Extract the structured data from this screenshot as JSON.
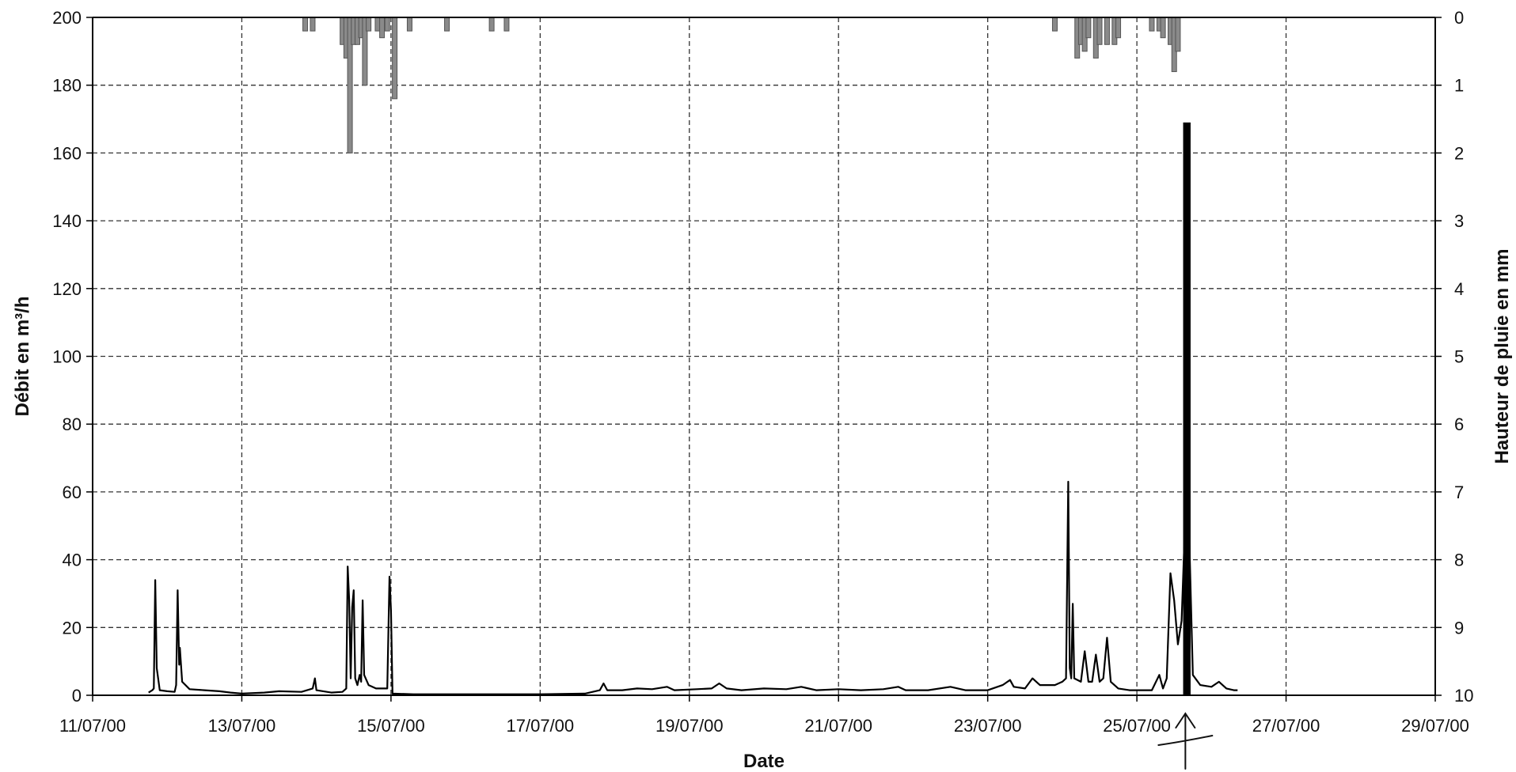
{
  "chart_data": {
    "type": "line",
    "title": "",
    "xlabel": "Date",
    "ylabel_left": "Débit en m³/h",
    "ylabel_right": "Hauteur de pluie en mm",
    "x_tick_labels": [
      "11/07/00",
      "13/07/00",
      "15/07/00",
      "17/07/00",
      "19/07/00",
      "21/07/00",
      "23/07/00",
      "25/07/00",
      "27/07/00",
      "29/07/00"
    ],
    "x_range_days": [
      0,
      18
    ],
    "y_left_ticks": [
      "0",
      "20",
      "40",
      "60",
      "80",
      "100",
      "120",
      "140",
      "160",
      "180",
      "200"
    ],
    "y_left_range": [
      0,
      200
    ],
    "y_right_ticks": [
      "0",
      "1",
      "2",
      "3",
      "4",
      "5",
      "6",
      "7",
      "8",
      "9",
      "10"
    ],
    "y_right_range": [
      0,
      10
    ],
    "y_right_inverted": true,
    "grid": true,
    "series": [
      {
        "kind": "flow",
        "axis": "left",
        "color": "#000000",
        "points": [
          [
            0.75,
            0.8
          ],
          [
            0.8,
            1.5
          ],
          [
            0.82,
            2
          ],
          [
            0.84,
            34
          ],
          [
            0.86,
            8
          ],
          [
            0.9,
            1.5
          ],
          [
            1.0,
            1.2
          ],
          [
            1.1,
            1
          ],
          [
            1.12,
            3
          ],
          [
            1.14,
            31
          ],
          [
            1.16,
            9
          ],
          [
            1.17,
            14
          ],
          [
            1.2,
            4
          ],
          [
            1.3,
            1.8
          ],
          [
            1.5,
            1.5
          ],
          [
            1.7,
            1.2
          ],
          [
            1.85,
            0.8
          ],
          [
            2.0,
            0.5
          ],
          [
            2.3,
            0.8
          ],
          [
            2.5,
            1.2
          ],
          [
            2.8,
            1
          ],
          [
            2.95,
            2
          ],
          [
            2.98,
            5
          ],
          [
            3.0,
            1.5
          ],
          [
            3.2,
            0.8
          ],
          [
            3.35,
            1
          ],
          [
            3.4,
            2
          ],
          [
            3.42,
            38
          ],
          [
            3.44,
            28
          ],
          [
            3.46,
            5
          ],
          [
            3.48,
            26
          ],
          [
            3.5,
            31
          ],
          [
            3.52,
            5
          ],
          [
            3.55,
            3
          ],
          [
            3.58,
            6
          ],
          [
            3.6,
            4
          ],
          [
            3.62,
            28
          ],
          [
            3.64,
            6
          ],
          [
            3.7,
            3
          ],
          [
            3.8,
            2
          ],
          [
            3.95,
            2
          ],
          [
            3.98,
            35
          ],
          [
            4.0,
            25
          ],
          [
            4.02,
            0.5
          ],
          [
            4.3,
            0.3
          ],
          [
            6.0,
            0.3
          ],
          [
            6.6,
            0.5
          ],
          [
            6.8,
            1.5
          ],
          [
            6.85,
            3.5
          ],
          [
            6.9,
            1.5
          ],
          [
            7.1,
            1.5
          ],
          [
            7.3,
            2
          ],
          [
            7.5,
            1.8
          ],
          [
            7.7,
            2.5
          ],
          [
            7.8,
            1.5
          ],
          [
            8.1,
            1.8
          ],
          [
            8.3,
            2
          ],
          [
            8.4,
            3.5
          ],
          [
            8.5,
            2
          ],
          [
            8.7,
            1.5
          ],
          [
            9.0,
            2
          ],
          [
            9.3,
            1.8
          ],
          [
            9.5,
            2.5
          ],
          [
            9.7,
            1.5
          ],
          [
            10.0,
            1.8
          ],
          [
            10.3,
            1.5
          ],
          [
            10.6,
            1.8
          ],
          [
            10.8,
            2.5
          ],
          [
            10.9,
            1.5
          ],
          [
            11.2,
            1.5
          ],
          [
            11.5,
            2.5
          ],
          [
            11.7,
            1.5
          ],
          [
            12.0,
            1.5
          ],
          [
            12.2,
            3
          ],
          [
            12.3,
            4.5
          ],
          [
            12.35,
            2.5
          ],
          [
            12.5,
            2
          ],
          [
            12.6,
            5
          ],
          [
            12.7,
            3
          ],
          [
            12.9,
            3
          ],
          [
            13.0,
            4
          ],
          [
            13.05,
            5
          ],
          [
            13.08,
            63
          ],
          [
            13.1,
            8
          ],
          [
            13.12,
            5
          ],
          [
            13.14,
            27
          ],
          [
            13.16,
            5
          ],
          [
            13.25,
            4
          ],
          [
            13.3,
            13
          ],
          [
            13.35,
            4
          ],
          [
            13.4,
            4
          ],
          [
            13.45,
            12
          ],
          [
            13.5,
            4
          ],
          [
            13.55,
            5
          ],
          [
            13.6,
            17
          ],
          [
            13.65,
            4
          ],
          [
            13.75,
            2
          ],
          [
            13.9,
            1.5
          ],
          [
            14.2,
            1.5
          ],
          [
            14.3,
            6
          ],
          [
            14.35,
            2
          ],
          [
            14.4,
            5
          ],
          [
            14.45,
            36
          ],
          [
            14.5,
            28
          ],
          [
            14.55,
            15
          ],
          [
            14.6,
            22
          ],
          [
            14.65,
            54
          ],
          [
            14.7,
            48
          ],
          [
            14.75,
            6
          ],
          [
            14.85,
            3
          ],
          [
            15.0,
            2.5
          ],
          [
            15.1,
            4
          ],
          [
            15.2,
            2
          ],
          [
            15.3,
            1.5
          ],
          [
            15.35,
            1.5
          ]
        ]
      },
      {
        "kind": "flow-bar",
        "axis": "left",
        "color": "#000000",
        "bars": [
          {
            "x": 14.62,
            "x2": 14.72,
            "value": 169
          }
        ]
      },
      {
        "kind": "rain",
        "axis": "right",
        "color": "#555555",
        "bars": [
          [
            2.85,
            0.2
          ],
          [
            2.95,
            0.2
          ],
          [
            3.35,
            0.4
          ],
          [
            3.4,
            0.6
          ],
          [
            3.45,
            2.0
          ],
          [
            3.5,
            0.4
          ],
          [
            3.55,
            0.4
          ],
          [
            3.6,
            0.3
          ],
          [
            3.65,
            1.0
          ],
          [
            3.7,
            0.2
          ],
          [
            3.82,
            0.2
          ],
          [
            3.88,
            0.3
          ],
          [
            3.95,
            0.2
          ],
          [
            4.05,
            1.2
          ],
          [
            4.25,
            0.2
          ],
          [
            4.75,
            0.2
          ],
          [
            5.35,
            0.2
          ],
          [
            5.55,
            0.2
          ],
          [
            12.9,
            0.2
          ],
          [
            13.2,
            0.6
          ],
          [
            13.25,
            0.4
          ],
          [
            13.3,
            0.5
          ],
          [
            13.35,
            0.3
          ],
          [
            13.45,
            0.6
          ],
          [
            13.5,
            0.4
          ],
          [
            13.6,
            0.4
          ],
          [
            13.7,
            0.4
          ],
          [
            13.75,
            0.3
          ],
          [
            14.2,
            0.2
          ],
          [
            14.3,
            0.2
          ],
          [
            14.35,
            0.3
          ],
          [
            14.45,
            0.4
          ],
          [
            14.5,
            0.8
          ],
          [
            14.55,
            0.5
          ]
        ]
      }
    ],
    "annotation": "arrow"
  }
}
